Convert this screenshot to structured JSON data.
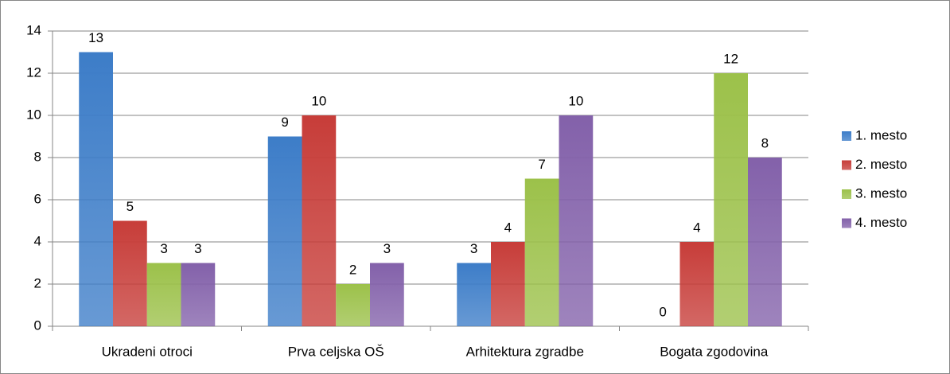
{
  "chart_data": {
    "type": "bar",
    "categories": [
      "Ukradeni otroci",
      "Prva celjska OŠ",
      "Arhitektura zgradbe",
      "Bogata zgodovina"
    ],
    "series": [
      {
        "name": "1. mesto",
        "color": "#3d7dc8",
        "values": [
          13,
          9,
          3,
          0
        ]
      },
      {
        "name": "2. mesto",
        "color": "#c73d39",
        "values": [
          5,
          10,
          4,
          4
        ]
      },
      {
        "name": "3. mesto",
        "color": "#9cc14a",
        "values": [
          3,
          2,
          7,
          12
        ]
      },
      {
        "name": "4. mesto",
        "color": "#8361aa",
        "values": [
          3,
          3,
          10,
          8
        ]
      }
    ],
    "ylim": [
      0,
      14
    ],
    "yticks": [
      0,
      2,
      4,
      6,
      8,
      10,
      12,
      14
    ],
    "grid": true,
    "legend": "right",
    "data_labels": true
  }
}
